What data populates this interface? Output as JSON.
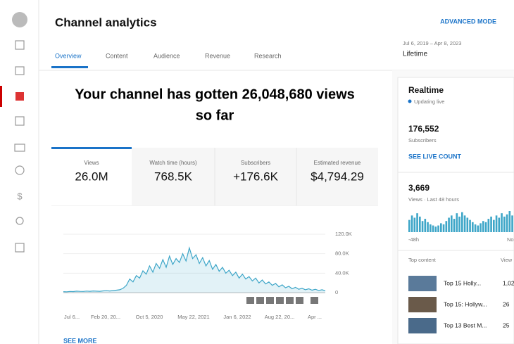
{
  "header": {
    "title": "Channel analytics",
    "advanced": "ADVANCED MODE",
    "date_range": "Jul 6, 2019 – Apr 8, 2023",
    "period": "Lifetime"
  },
  "tabs": [
    "Overview",
    "Content",
    "Audience",
    "Revenue",
    "Research"
  ],
  "headline": [
    "Your channel has gotten 26,048,680 views",
    "so far"
  ],
  "cards": [
    {
      "label": "Views",
      "value": "26.0M"
    },
    {
      "label": "Watch time (hours)",
      "value": "768.5K"
    },
    {
      "label": "Subscribers",
      "value": "+176.6K"
    },
    {
      "label": "Estimated revenue",
      "value": "$4,794.29"
    }
  ],
  "chart": {
    "type": "area",
    "color": "#3ea6c8",
    "values": [
      2000,
      1800,
      2500,
      2200,
      3000,
      2600,
      2400,
      3200,
      2800,
      3500,
      3000,
      2700,
      3600,
      4000,
      3500,
      4200,
      5000,
      6000,
      9000,
      15000,
      28000,
      22000,
      35000,
      30000,
      45000,
      38000,
      55000,
      42000,
      60000,
      50000,
      68000,
      52000,
      75000,
      58000,
      70000,
      62000,
      80000,
      65000,
      92000,
      70000,
      78000,
      60000,
      72000,
      55000,
      66000,
      48000,
      58000,
      44000,
      52000,
      40000,
      46000,
      35000,
      42000,
      30000,
      38000,
      28000,
      33000,
      24000,
      30000,
      20000,
      26000,
      18000,
      22000,
      15000,
      19000,
      12000,
      16000,
      10000,
      13000,
      8000,
      11000,
      7000,
      9000,
      6000,
      8000,
      5000,
      7000,
      4500,
      6000,
      4000
    ],
    "ylim": [
      0,
      120000
    ],
    "yticks": [
      {
        "value": 0,
        "label": "0"
      },
      {
        "value": 40000,
        "label": "40.0K"
      },
      {
        "value": 80000,
        "label": "80.0K"
      },
      {
        "value": 120000,
        "label": "120.0K"
      }
    ],
    "x_tick_labels": [
      "Jul 6...",
      "Feb 20, 20...",
      "Oct 5, 2020",
      "May 22, 2021",
      "Jan 6, 2022",
      "Aug 22, 20...",
      "Apr ..."
    ]
  },
  "see_more": "SEE MORE",
  "realtime": {
    "title": "Realtime",
    "status": "Updating live",
    "subscribers": "176,552",
    "subscribers_label": "Subscribers",
    "live_count": "SEE LIVE COUNT",
    "views": "3,669",
    "views_label": "Views · Last 48 hours",
    "bars": [
      22,
      30,
      26,
      34,
      28,
      20,
      24,
      18,
      14,
      12,
      10,
      12,
      16,
      14,
      20,
      26,
      30,
      24,
      34,
      28,
      36,
      30,
      26,
      22,
      18,
      14,
      12,
      16,
      20,
      18,
      24,
      28,
      22,
      30,
      26,
      34,
      28,
      32,
      38,
      30
    ],
    "start": "-48h",
    "end": "No",
    "top_content": "Top content",
    "views_header": "View",
    "rows": [
      {
        "title": "Top 15 Holly...",
        "views": "1,02"
      },
      {
        "title": "Top 15: Hollyw...",
        "views": "26"
      },
      {
        "title": "Top 13 Best M...",
        "views": "25"
      }
    ]
  }
}
